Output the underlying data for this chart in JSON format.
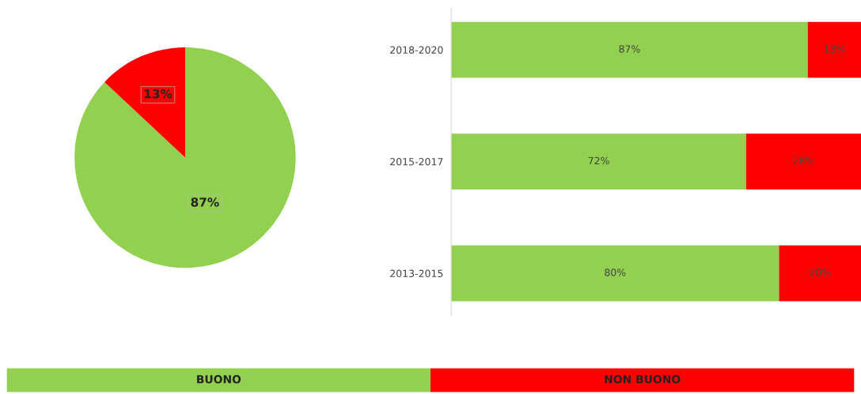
{
  "chart_data": [
    {
      "type": "pie",
      "categories": [
        null,
        null
      ],
      "values": [
        87,
        13
      ],
      "colors": [
        "#92d050",
        "#ff0000"
      ],
      "value_labels": [
        "87%",
        "13%"
      ]
    },
    {
      "type": "bar",
      "orientation": "horizontal",
      "stacked": true,
      "legend": "bottom",
      "tick_labels": "y",
      "categories": [
        "2018-2020",
        "2015-2017",
        "2013-2015"
      ],
      "series": [
        {
          "name": "BUONO",
          "color": "#92d050",
          "values": [
            87,
            72,
            80
          ],
          "value_labels": [
            "87%",
            "72%",
            "80%"
          ]
        },
        {
          "name": "NON BUONO",
          "color": "#ff0000",
          "values": [
            13,
            28,
            20
          ],
          "value_labels": [
            "13%",
            "28%",
            "20%"
          ]
        }
      ]
    }
  ]
}
